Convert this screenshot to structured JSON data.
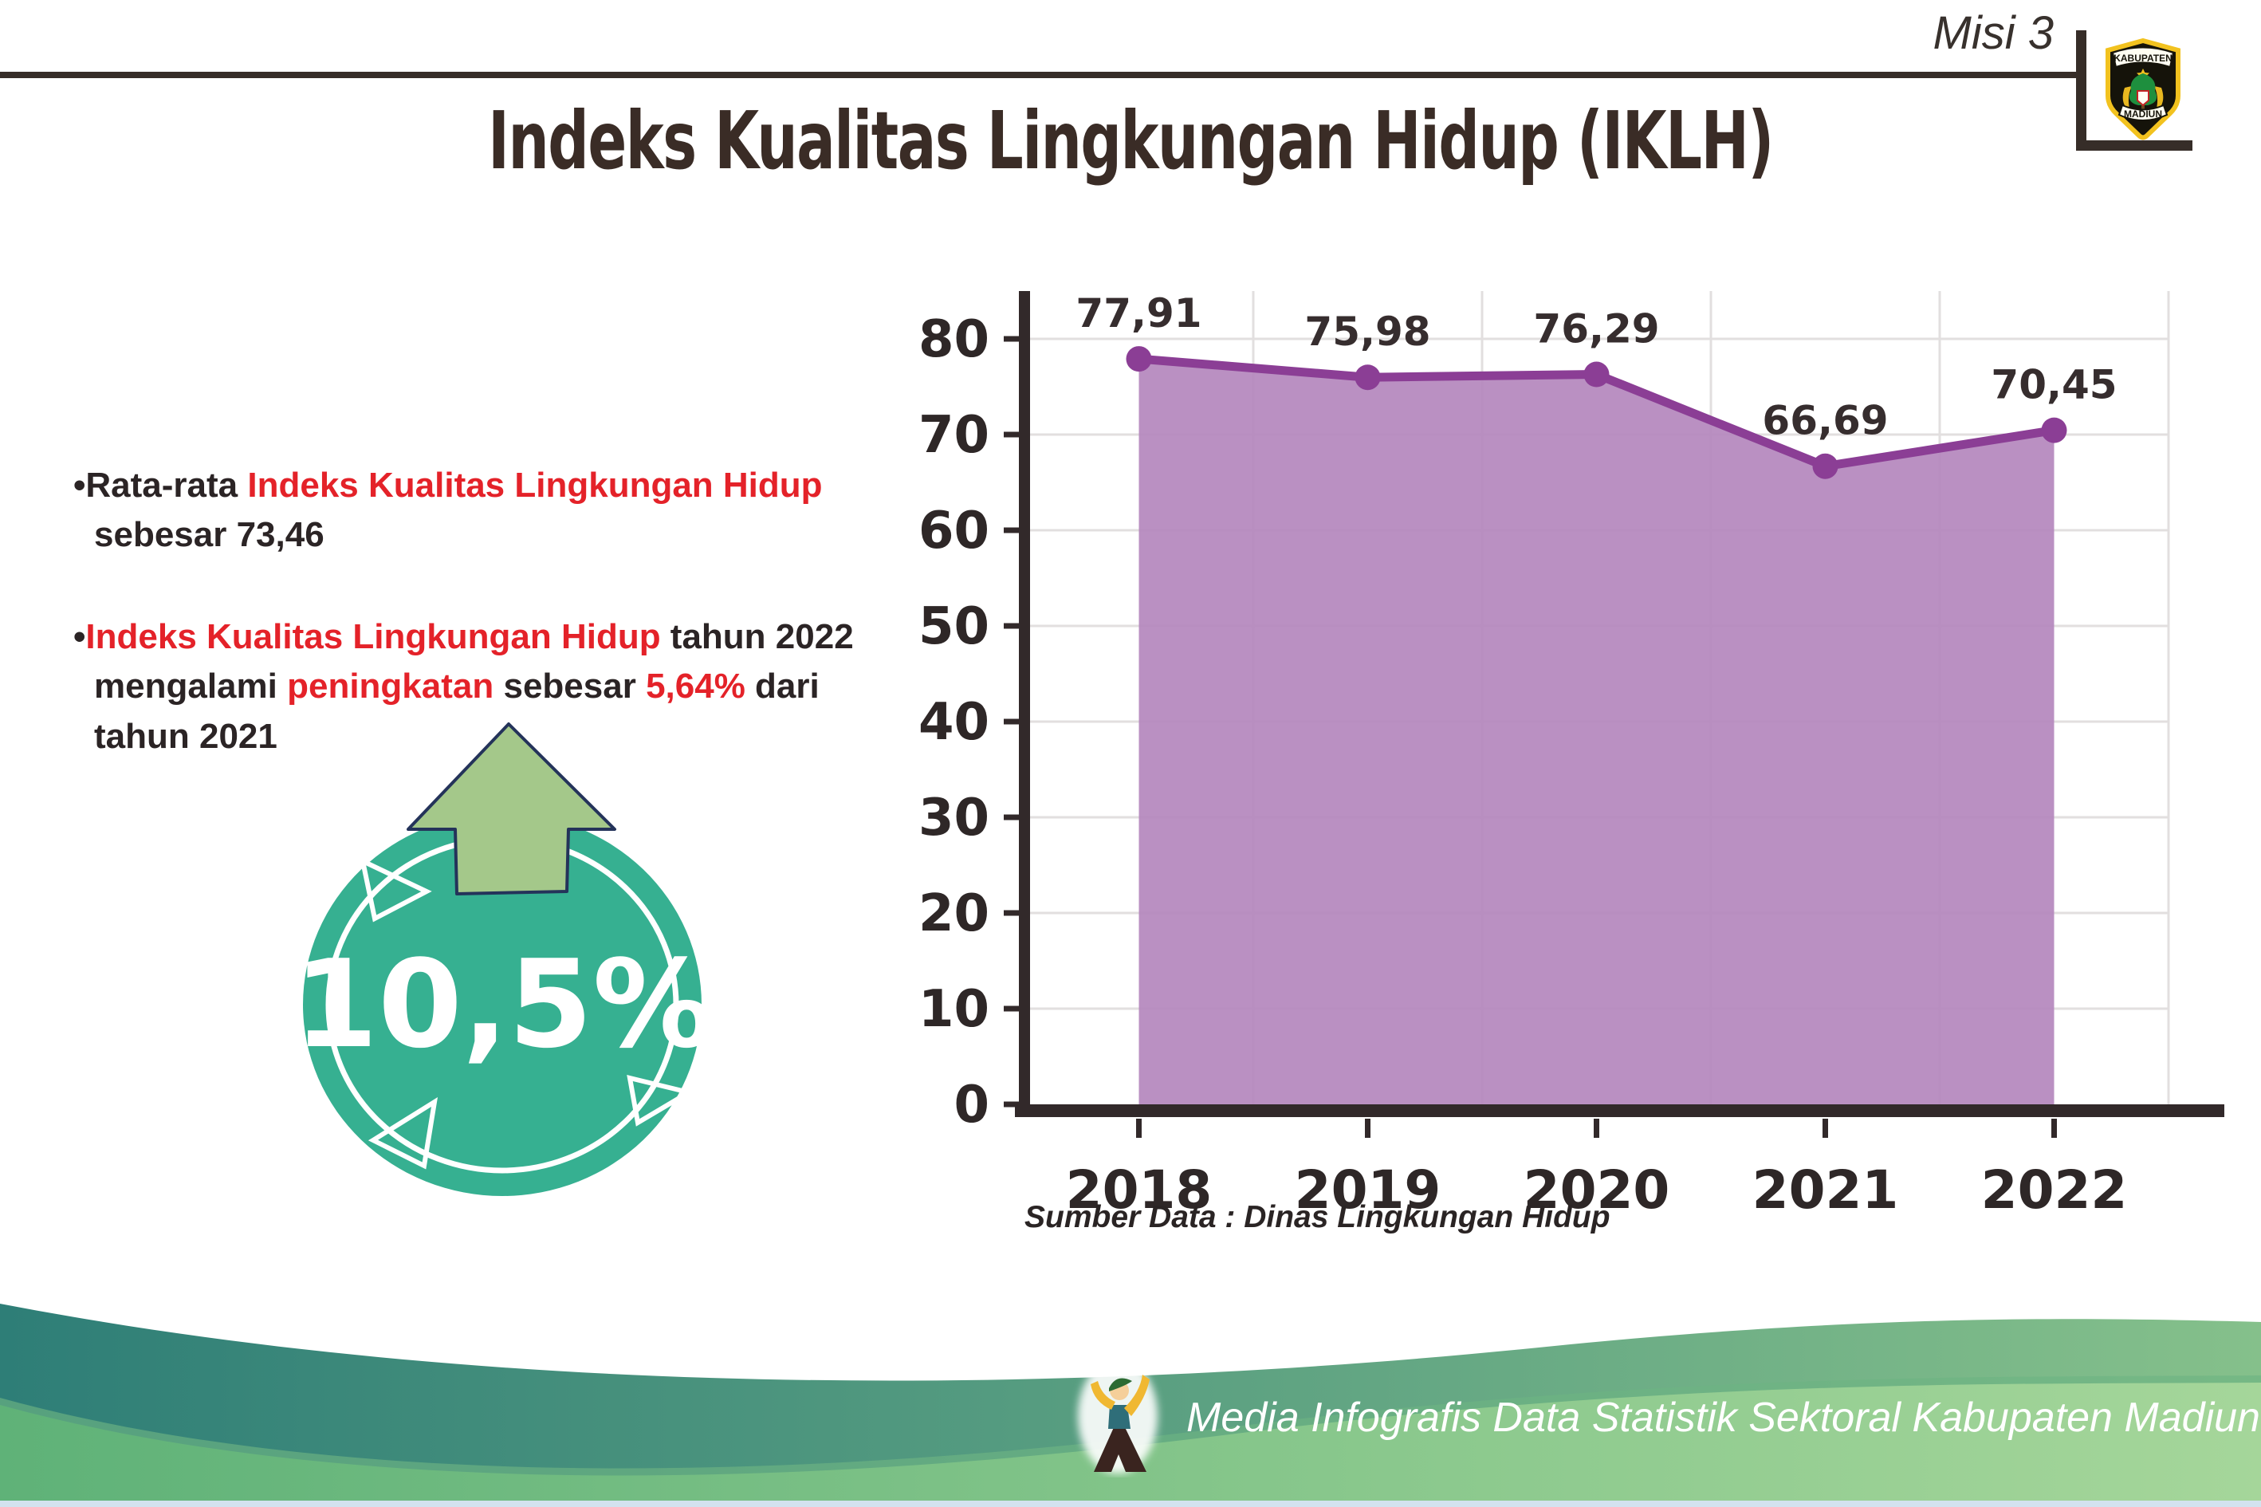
{
  "header": {
    "misi_label": "Misi 3",
    "title": "Indeks Kualitas Lingkungan Hidup (IKLH)",
    "logo": {
      "top_text": "KABUPATEN",
      "bottom_text": "MADIUN"
    }
  },
  "left_panel": {
    "bullet_char": "•",
    "bullets": [
      {
        "segments": [
          {
            "text": "Rata-rata ",
            "color": "dark"
          },
          {
            "text": "Indeks Kualitas Lingkungan Hidup",
            "color": "red"
          },
          {
            "text": " sebesar 73,46",
            "color": "dark"
          }
        ]
      },
      {
        "segments": [
          {
            "text": "Indeks Kualitas Lingkungan Hidup",
            "color": "red"
          },
          {
            "text": " tahun 2022 mengalami ",
            "color": "dark"
          },
          {
            "text": "peningkatan",
            "color": "red"
          },
          {
            "text": " sebesar ",
            "color": "dark"
          },
          {
            "text": "5,64%",
            "color": "red"
          },
          {
            "text": " dari tahun 2021",
            "color": "dark"
          }
        ]
      }
    ],
    "badge": {
      "percent": "10,5%",
      "circle_color": "#36b091",
      "ring_color": "#ffffff",
      "arrow_color": "#a4c88a",
      "arrow_outline": "#24335a"
    }
  },
  "chart_data": {
    "type": "area",
    "title": "Indeks Kualitas Lingkungan Hidup (IKLH)",
    "categories": [
      "2018",
      "2019",
      "2020",
      "2021",
      "2022"
    ],
    "values": [
      77.91,
      75.98,
      76.29,
      66.69,
      70.45
    ],
    "value_labels": [
      "77,91",
      "75,98",
      "76,29",
      "66,69",
      "70,45"
    ],
    "xlabel": "",
    "ylabel": "",
    "ylim": [
      0,
      80
    ],
    "ytick_step": 10,
    "grid": true,
    "legend": "none",
    "source": "Sumber Data : Dinas Lingkungan Hidup",
    "area_color": "#b487bd",
    "line_color": "#8b3e95",
    "grid_color": "#e2dfdf",
    "axis_color": "#32292a"
  },
  "footer": {
    "credit": "Media Infografis Data Statistik Sektoral Kabupaten Madiun |"
  },
  "colors": {
    "accent_red": "#e42229",
    "dark_text": "#2b2425",
    "rule": "#362d28",
    "wave_teal_left": "#2e7e77",
    "wave_teal_right": "#85c08b",
    "wave_green_left": "#5fb278",
    "wave_green_right": "#a5d69a",
    "bottom_strip": "#d3e2ef"
  }
}
